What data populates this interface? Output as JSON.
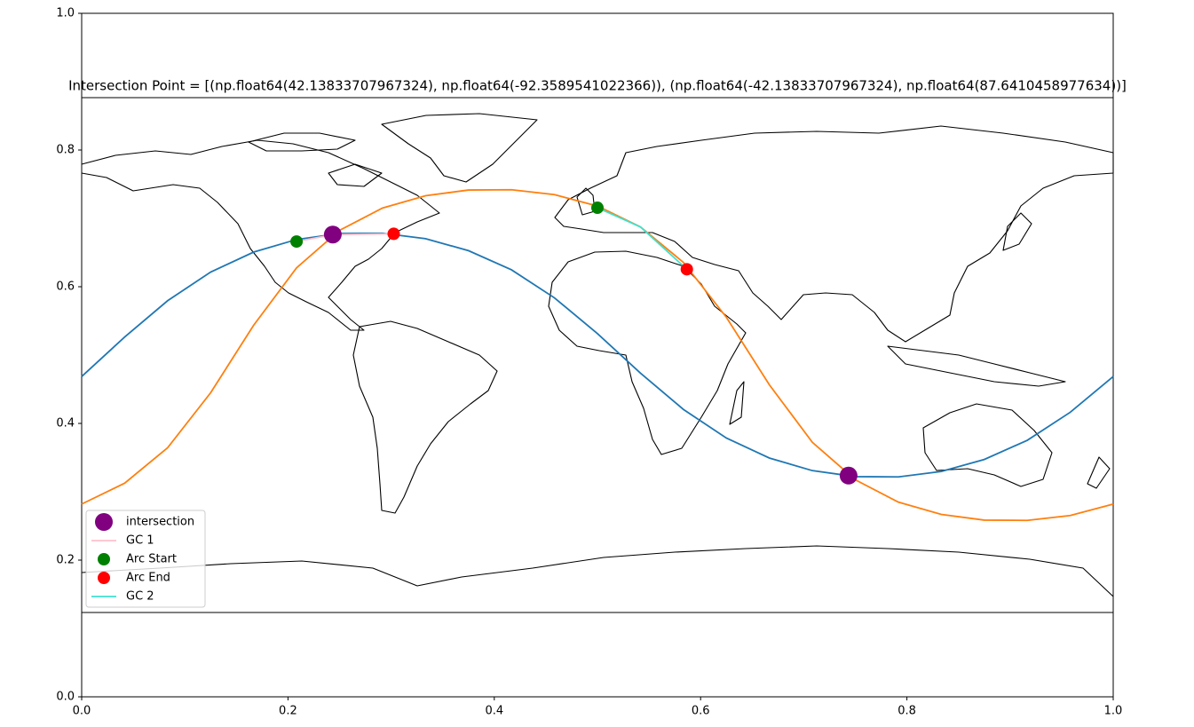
{
  "chart_data": [
    {
      "type": "frame",
      "xlim": [
        0,
        1
      ],
      "ylim": [
        0,
        1
      ],
      "xticks": [
        {
          "value": 0,
          "label": "0.0"
        },
        0.2,
        0.4,
        0.6,
        0.8,
        {
          "value": 1,
          "label": "1.0"
        }
      ],
      "yticks": [
        {
          "value": 0,
          "label": "0.0"
        },
        0.2,
        0.4,
        0.6,
        0.8,
        {
          "value": 1,
          "label": "1.0"
        }
      ]
    },
    {
      "type": "map",
      "title": "Intersection Point = [(np.float64(42.13833707967324), np.float64(-92.3589541022366)), (np.float64(-42.13833707967324), np.float64(87.6410458977634))]",
      "xlim": [
        -180,
        180
      ],
      "ylim": [
        -90,
        90
      ],
      "legend": "lower left",
      "lon": [
        -180,
        -165,
        -150,
        -135,
        -120,
        -105,
        -90,
        -75,
        -60,
        -45,
        -30,
        -15,
        0,
        15,
        30,
        45,
        60,
        75,
        90,
        105,
        120,
        135,
        150,
        165,
        180
      ],
      "series": [
        {
          "color": "#1f77b4",
          "values": [
            -7.5,
            6.3,
            19.0,
            29.0,
            36.0,
            40.4,
            42.5,
            42.6,
            40.7,
            36.5,
            29.8,
            20.0,
            7.5,
            -6.3,
            -19.0,
            -29.0,
            -36.0,
            -40.4,
            -42.5,
            -42.6,
            -40.7,
            -36.5,
            -29.8,
            -20.0,
            -7.5
          ]
        },
        {
          "color": "#ff7f0e",
          "values": [
            -52.1,
            -44.8,
            -32.4,
            -13.2,
            10.4,
            30.5,
            43.6,
            51.4,
            55.7,
            57.7,
            57.8,
            56.1,
            52.1,
            44.8,
            32.4,
            13.2,
            -10.4,
            -30.5,
            -43.6,
            -51.4,
            -55.7,
            -57.7,
            -57.8,
            -56.1,
            -52.1
          ]
        }
      ],
      "layers": [
        {
          "kind": "scatter",
          "name": "intersection",
          "color": "purple",
          "size": 10,
          "lon": [
            -92.3589541022366,
            87.6410458977634
          ],
          "lat": [
            42.13833707967324,
            -42.13833707967324
          ]
        },
        {
          "kind": "line",
          "name": "GC 1",
          "color": "pink",
          "lon": [
            -105.0,
            -92.4,
            -71.1
          ],
          "lat": [
            39.7,
            42.1,
            42.4
          ]
        },
        {
          "kind": "scatter",
          "name": "Arc Start",
          "color": "green",
          "size": 7,
          "lon": [
            -105.0,
            0.0
          ],
          "lat": [
            39.7,
            51.5
          ]
        },
        {
          "kind": "scatter",
          "name": "Arc End",
          "color": "red",
          "size": 7,
          "lon": [
            -71.1,
            31.2
          ],
          "lat": [
            42.4,
            30.0
          ]
        },
        {
          "kind": "line",
          "name": "GC 2",
          "color": "#40e0d0",
          "lon": [
            0.0,
            15.0,
            31.2
          ],
          "lat": [
            51.5,
            44.8,
            30.0
          ]
        }
      ]
    }
  ]
}
